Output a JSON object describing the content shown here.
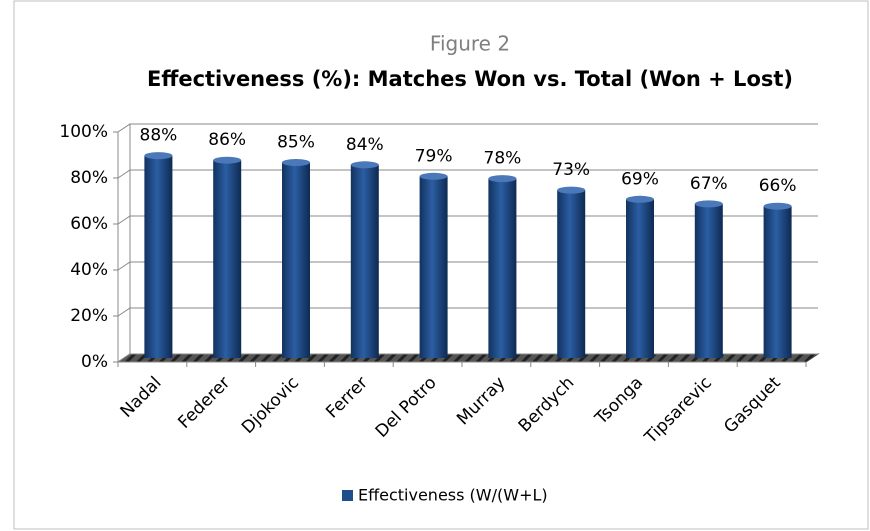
{
  "chart_data": {
    "type": "bar",
    "subtitle": "Figure 2",
    "title": "Effectiveness (%): Matches Won vs. Total (Won + Lost)",
    "categories": [
      "Nadal",
      "Federer",
      "Djokovic",
      "Ferrer",
      "Del Potro",
      "Murray",
      "Berdych",
      "Tsonga",
      "Tipsarevic",
      "Gasquet"
    ],
    "series": [
      {
        "name": "Effectiveness (W/(W+L)",
        "color": "#1f4e8c",
        "values": [
          88,
          86,
          85,
          84,
          79,
          78,
          73,
          69,
          67,
          66
        ],
        "value_labels": [
          "88%",
          "86%",
          "85%",
          "84%",
          "79%",
          "78%",
          "73%",
          "69%",
          "67%",
          "66%"
        ]
      }
    ],
    "ylim": [
      0,
      100
    ],
    "yticks": [
      {
        "value": 0,
        "label": "0%"
      },
      {
        "value": 20,
        "label": "20%"
      },
      {
        "value": 40,
        "label": "40%"
      },
      {
        "value": 60,
        "label": "60%"
      },
      {
        "value": 80,
        "label": "80%"
      },
      {
        "value": 100,
        "label": "100%"
      }
    ],
    "grid": true,
    "legend": "bottom"
  }
}
